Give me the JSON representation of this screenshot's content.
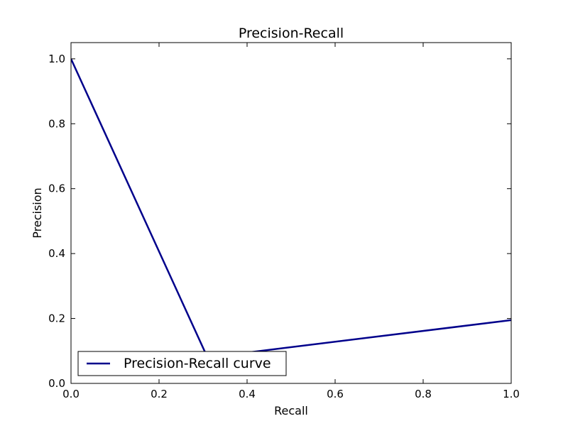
{
  "chart_data": {
    "type": "line",
    "title": "Precision-Recall",
    "xlabel": "Recall",
    "ylabel": "Precision",
    "xlim": [
      0.0,
      1.0
    ],
    "ylim": [
      0.0,
      1.05
    ],
    "xticks": [
      0.0,
      0.2,
      0.4,
      0.6,
      0.8,
      1.0
    ],
    "yticks": [
      0.0,
      0.2,
      0.4,
      0.6,
      0.8,
      1.0
    ],
    "xtick_labels": [
      "0.0",
      "0.2",
      "0.4",
      "0.6",
      "0.8",
      "1.0"
    ],
    "ytick_labels": [
      "0.0",
      "0.2",
      "0.4",
      "0.6",
      "0.8",
      "1.0"
    ],
    "grid": false,
    "legend_position": "lower-left",
    "series": [
      {
        "name": "Precision-Recall curve",
        "color": "#00008b",
        "x": [
          0.0,
          0.31,
          1.0
        ],
        "y": [
          1.0,
          0.08,
          0.195
        ]
      }
    ]
  }
}
